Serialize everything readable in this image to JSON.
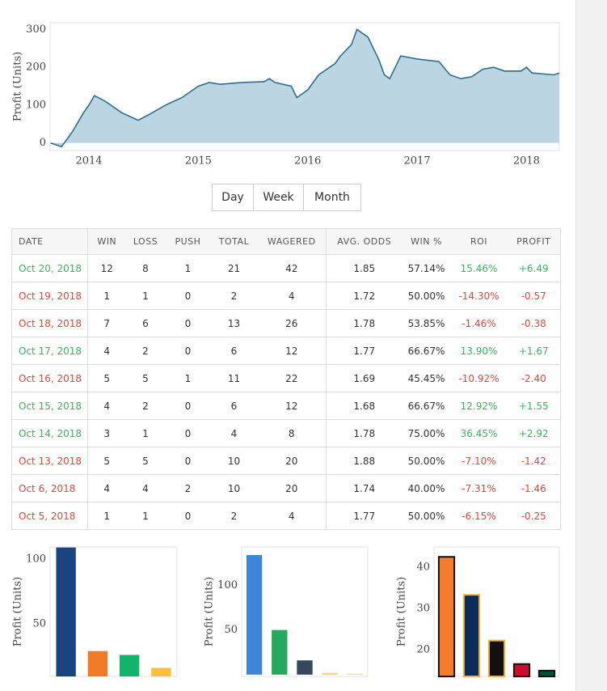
{
  "chart_data": [
    {
      "type": "area",
      "ylabel": "Profit (Units)",
      "color": "#2b6f8f",
      "fill": "#bcd5e2",
      "x": [
        2013.65,
        2013.75,
        2013.85,
        2013.95,
        2014.0,
        2014.05,
        2014.15,
        2014.3,
        2014.45,
        2014.55,
        2014.7,
        2014.85,
        2015.0,
        2015.1,
        2015.2,
        2015.4,
        2015.6,
        2015.65,
        2015.7,
        2015.85,
        2015.9,
        2016.0,
        2016.1,
        2016.2,
        2016.25,
        2016.3,
        2016.4,
        2016.45,
        2016.55,
        2016.65,
        2016.7,
        2016.75,
        2016.8,
        2016.85,
        2017.0,
        2017.2,
        2017.3,
        2017.4,
        2017.5,
        2017.6,
        2017.7,
        2017.8,
        2017.95,
        2018.0,
        2018.05,
        2018.25,
        2018.3
      ],
      "values": [
        0,
        -10,
        30,
        80,
        100,
        125,
        110,
        80,
        60,
        75,
        100,
        120,
        150,
        160,
        155,
        160,
        162,
        170,
        160,
        150,
        120,
        140,
        180,
        200,
        210,
        230,
        260,
        300,
        280,
        220,
        180,
        170,
        200,
        230,
        222,
        215,
        180,
        170,
        175,
        195,
        200,
        190,
        190,
        200,
        185,
        180,
        185
      ],
      "xlim": [
        2013.645,
        2018.3
      ],
      "xticks": [
        2014,
        2015,
        2016,
        2017,
        2018
      ],
      "ylim": [
        -20,
        318
      ],
      "yticks": [
        0,
        100,
        200,
        300
      ]
    },
    {
      "type": "bar",
      "ylabel": "Profit (Units)",
      "values": [
        109,
        29,
        26,
        16
      ],
      "colors": [
        "#1a4480",
        "#f07a26",
        "#12b36a",
        "#fbbf3a"
      ],
      "ylim": [
        9.4,
        109.4
      ],
      "yticks": [
        50,
        100
      ]
    },
    {
      "type": "bar",
      "ylabel": "Profit (Units)",
      "values": [
        134,
        50,
        16,
        2,
        1
      ],
      "colors": [
        "#3d85d8",
        "#27a85f",
        "#34495e",
        "#f5d76e",
        "#f5d76e"
      ],
      "ylim": [
        -2,
        143
      ],
      "yticks": [
        50,
        100
      ]
    },
    {
      "type": "bar",
      "ylabel": "Profit (Units)",
      "values": [
        42.5,
        33.3,
        22.2,
        16.5,
        14.9
      ],
      "colors": [
        "#f57c2b",
        "#0b2d5c",
        "#111111",
        "#c8102e",
        "#00513a"
      ],
      "edgecolors": [
        "#111111",
        "#f2b632",
        "#f2b632",
        "#111111",
        "#111111"
      ],
      "ylim": [
        13.5,
        44.9
      ],
      "yticks": [
        20,
        30,
        40
      ]
    }
  ],
  "buttons": [
    "Day",
    "Week",
    "Month"
  ],
  "table": {
    "columns": [
      "DATE",
      "WIN",
      "LOSS",
      "PUSH",
      "TOTAL",
      "WAGERED",
      "AVG. ODDS",
      "WIN %",
      "ROI",
      "PROFIT"
    ],
    "rows": [
      [
        "Oct 20, 2018",
        "12",
        "8",
        "1",
        "21",
        "42",
        "1.85",
        "57.14%",
        "15.46%",
        "+6.49"
      ],
      [
        "Oct 19, 2018",
        "1",
        "1",
        "0",
        "2",
        "4",
        "1.72",
        "50.00%",
        "-14.30%",
        "-0.57"
      ],
      [
        "Oct 18, 2018",
        "7",
        "6",
        "0",
        "13",
        "26",
        "1.78",
        "53.85%",
        "-1.46%",
        "-0.38"
      ],
      [
        "Oct 17, 2018",
        "4",
        "2",
        "0",
        "6",
        "12",
        "1.77",
        "66.67%",
        "13.90%",
        "+1.67"
      ],
      [
        "Oct 16, 2018",
        "5",
        "5",
        "1",
        "11",
        "22",
        "1.69",
        "45.45%",
        "-10.92%",
        "-2.40"
      ],
      [
        "Oct 15, 2018",
        "4",
        "2",
        "0",
        "6",
        "12",
        "1.68",
        "66.67%",
        "12.92%",
        "+1.55"
      ],
      [
        "Oct 14, 2018",
        "3",
        "1",
        "0",
        "4",
        "8",
        "1.78",
        "75.00%",
        "36.45%",
        "+2.92"
      ],
      [
        "Oct 13, 2018",
        "5",
        "5",
        "0",
        "10",
        "20",
        "1.88",
        "50.00%",
        "-7.10%",
        "-1.42"
      ],
      [
        "Oct 6, 2018",
        "4",
        "4",
        "2",
        "10",
        "20",
        "1.74",
        "40.00%",
        "-7.31%",
        "-1.46"
      ],
      [
        "Oct 5, 2018",
        "1",
        "1",
        "0",
        "2",
        "4",
        "1.77",
        "50.00%",
        "-6.15%",
        "-0.25"
      ]
    ]
  }
}
